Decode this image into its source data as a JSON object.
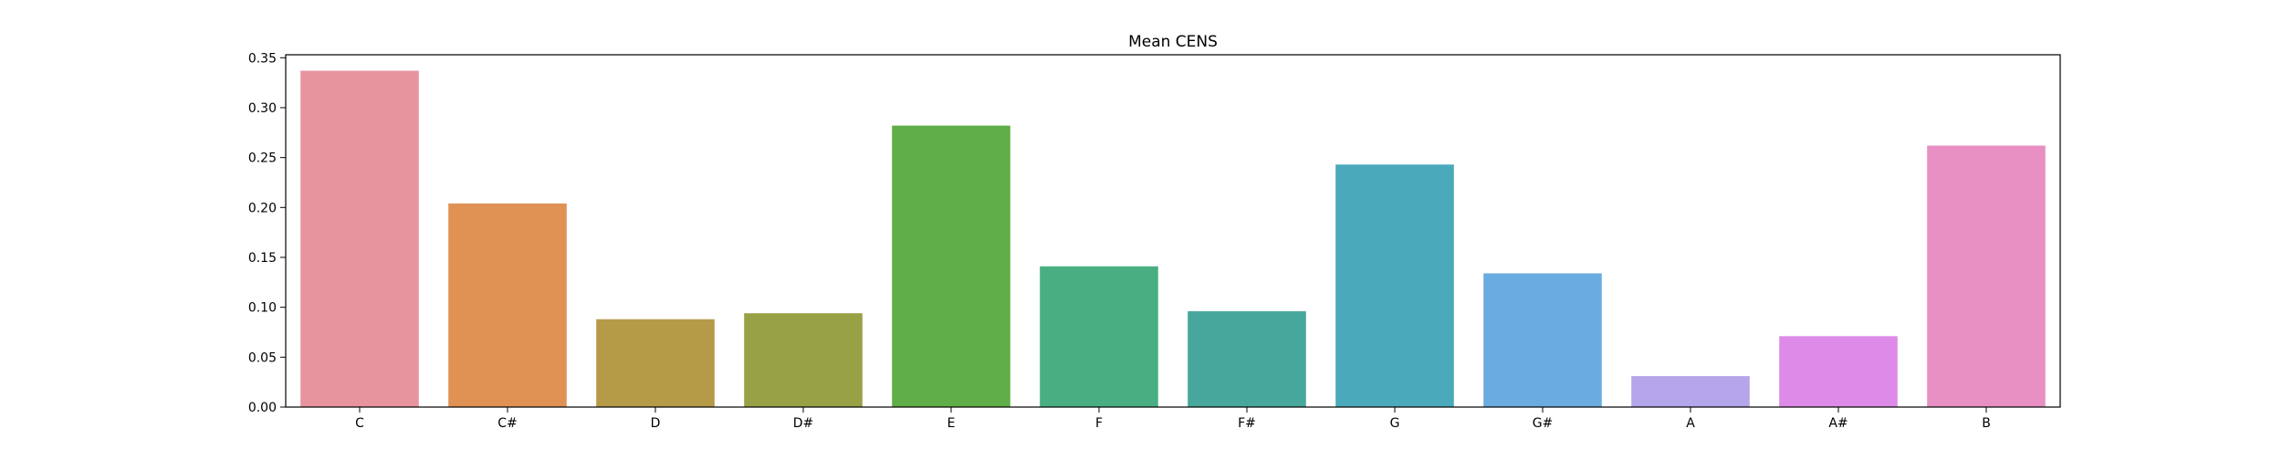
{
  "chart_data": {
    "type": "bar",
    "title": "Mean CENS",
    "xlabel": "",
    "ylabel": "",
    "categories": [
      "C",
      "C#",
      "D",
      "D#",
      "E",
      "F",
      "F#",
      "G",
      "G#",
      "A",
      "A#",
      "B"
    ],
    "values": [
      0.337,
      0.204,
      0.088,
      0.094,
      0.282,
      0.141,
      0.096,
      0.243,
      0.134,
      0.031,
      0.071,
      0.262
    ],
    "colors": [
      "#e8949f",
      "#e09154",
      "#b59a48",
      "#98a146",
      "#5fae47",
      "#49af82",
      "#48a79c",
      "#4aa9bb",
      "#6aabe0",
      "#b5a5ea",
      "#de8ae8",
      "#e890c4"
    ],
    "ylim": [
      0,
      0.353
    ],
    "yticks": [
      "0.00",
      "0.05",
      "0.10",
      "0.15",
      "0.20",
      "0.25",
      "0.30",
      "0.35"
    ],
    "grid": false,
    "legend": "none"
  }
}
